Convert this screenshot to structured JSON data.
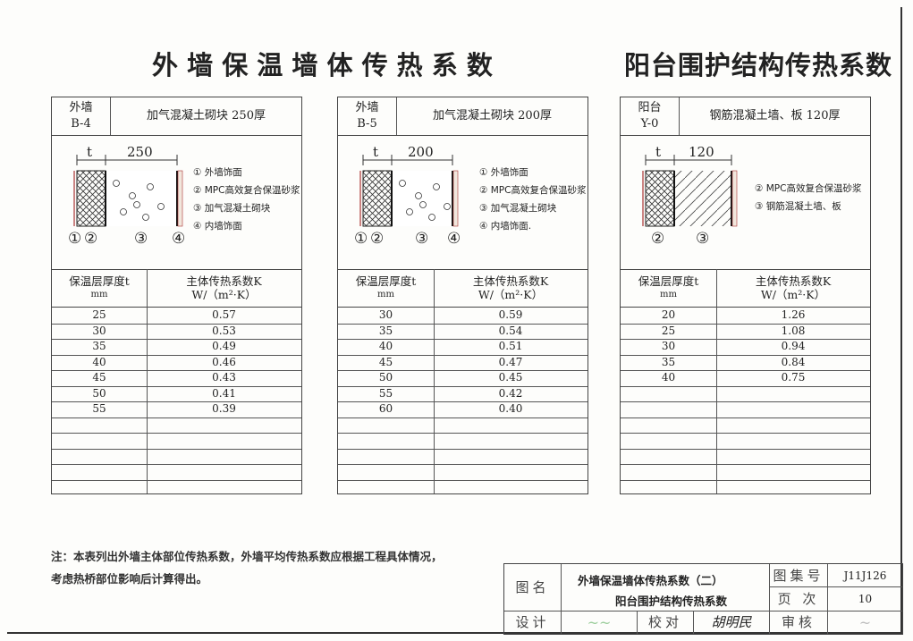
{
  "titles": {
    "left": "外 墙 保 温 墙 体 传 热 系 数",
    "right": "阳台围护结构传热系数"
  },
  "panels": [
    {
      "code": "外墙",
      "id": "B-4",
      "material": "加气混凝土砌块  250厚",
      "dim_t": "t",
      "dim_wall": "250",
      "legend": [
        "① 外墙饰面",
        "② MPC高效复合保温砂浆",
        "③ 加气混凝土砌块",
        "④ 内墙饰面"
      ],
      "markers": [
        "①",
        "②",
        "③",
        "④"
      ],
      "col1": "保温层厚度t",
      "col1_unit": "mm",
      "col2": "主体传热系数K",
      "col2_unit": "W/（m²·K）",
      "rows": [
        [
          "25",
          "0.57"
        ],
        [
          "30",
          "0.53"
        ],
        [
          "35",
          "0.49"
        ],
        [
          "40",
          "0.46"
        ],
        [
          "45",
          "0.43"
        ],
        [
          "50",
          "0.41"
        ],
        [
          "55",
          "0.39"
        ]
      ]
    },
    {
      "code": "外墙",
      "id": "B-5",
      "material": "加气混凝土砌块  200厚",
      "dim_t": "t",
      "dim_wall": "200",
      "legend": [
        "① 外墙饰面",
        "② MPC高效复合保温砂浆",
        "③ 加气混凝土砌块",
        "④ 内墙饰面."
      ],
      "markers": [
        "①",
        "②",
        "③",
        "④"
      ],
      "col1": "保温层厚度t",
      "col1_unit": "mm",
      "col2": "主体传热系数K",
      "col2_unit": "W/（m²·K）",
      "rows": [
        [
          "30",
          "0.59"
        ],
        [
          "35",
          "0.54"
        ],
        [
          "40",
          "0.51"
        ],
        [
          "45",
          "0.47"
        ],
        [
          "50",
          "0.45"
        ],
        [
          "55",
          "0.42"
        ],
        [
          "60",
          "0.40"
        ]
      ]
    },
    {
      "code": "阳台",
      "id": "Y-0",
      "material": "钢筋混凝土墙、板  120厚",
      "dim_t": "t",
      "dim_wall": "120",
      "legend": [
        "② MPC高效复合保温砂浆",
        "③ 钢筋混凝土墙、板"
      ],
      "markers": [
        "②",
        "③"
      ],
      "col1": "保温层厚度t",
      "col1_unit": "mm",
      "col2": "主体传热系数K",
      "col2_unit": "W/（m²·K）",
      "rows": [
        [
          "20",
          "1.26"
        ],
        [
          "25",
          "1.08"
        ],
        [
          "30",
          "0.94"
        ],
        [
          "35",
          "0.84"
        ],
        [
          "40",
          "0.75"
        ]
      ]
    }
  ],
  "note": [
    "注：本表列出外墙主体部位传热系数，外墙平均传热系数应根据工程具体情况，",
    "考虑热桥部位影响后计算得出。"
  ],
  "title_block": {
    "name_label": "图名",
    "name_line1": "外墙保温墙体传热系数（二）",
    "name_line2": "阳台围护结构传热系数",
    "atlas_label": "图集号",
    "atlas_no": "J11J126",
    "page_label": "页 次",
    "page_no": "10",
    "design_label": "设计",
    "check_label": "校对",
    "review_label": "审核",
    "check_signature": "胡明民"
  }
}
